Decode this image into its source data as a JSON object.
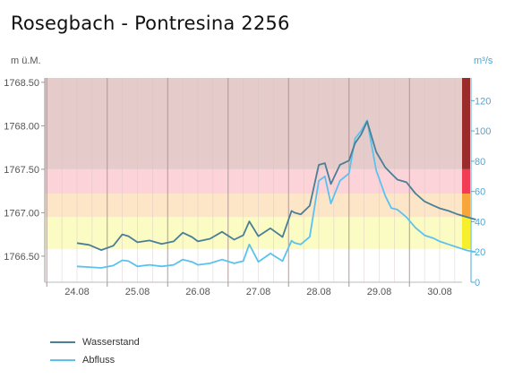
{
  "chart_data": {
    "type": "line",
    "title": "Rosegbach - Pontresina 2256",
    "ylabel_left": "m ü.M.",
    "ylabel_right": "m³/s",
    "ylim_left": [
      1766.2,
      1768.55
    ],
    "ylim_right": [
      0,
      135
    ],
    "yticks_left": [
      "1768.50",
      "1768.00",
      "1767.50",
      "1767.00",
      "1766.50"
    ],
    "yticks_right": [
      "120",
      "100",
      "80",
      "60",
      "40",
      "20",
      "0"
    ],
    "categories": [
      "24.08",
      "25.08",
      "26.08",
      "27.08",
      "28.08",
      "29.08",
      "30.08"
    ],
    "bands": [
      {
        "from": 1766.58,
        "to": 1766.95,
        "color": "#fbfbc4",
        "side": "#f7ee2c"
      },
      {
        "from": 1766.95,
        "to": 1767.22,
        "color": "#fde6c8",
        "side": "#f7a63a"
      },
      {
        "from": 1767.22,
        "to": 1767.5,
        "color": "#fcd3d8",
        "side": "#f23b55"
      },
      {
        "from": 1767.5,
        "to": 1768.55,
        "color": "#e6cbcb",
        "side": "#9b2a2a"
      }
    ],
    "series": [
      {
        "name": "Wasserstand",
        "axis": "left",
        "color": "#4a7f96",
        "x": [
          0,
          0.2,
          0.4,
          0.6,
          0.75,
          0.85,
          1.0,
          1.2,
          1.4,
          1.6,
          1.75,
          1.9,
          2.0,
          2.2,
          2.4,
          2.6,
          2.75,
          2.85,
          3.0,
          3.2,
          3.4,
          3.55,
          3.6,
          3.7,
          3.85,
          4.0,
          4.1,
          4.2,
          4.35,
          4.5,
          4.6,
          4.7,
          4.8,
          4.95,
          5.1,
          5.2,
          5.3,
          5.45,
          5.6,
          5.75,
          5.9,
          6.0,
          6.15,
          6.3,
          6.45,
          6.6
        ],
        "y": [
          1766.65,
          1766.63,
          1766.57,
          1766.62,
          1766.75,
          1766.73,
          1766.66,
          1766.68,
          1766.64,
          1766.67,
          1766.77,
          1766.72,
          1766.67,
          1766.7,
          1766.78,
          1766.69,
          1766.74,
          1766.9,
          1766.73,
          1766.82,
          1766.72,
          1767.02,
          1767.0,
          1766.98,
          1767.08,
          1767.55,
          1767.57,
          1767.33,
          1767.55,
          1767.6,
          1767.8,
          1767.9,
          1768.05,
          1767.7,
          1767.52,
          1767.45,
          1767.38,
          1767.35,
          1767.22,
          1767.13,
          1767.08,
          1767.05,
          1767.02,
          1766.98,
          1766.95,
          1766.92
        ]
      },
      {
        "name": "Abfluss",
        "axis": "right",
        "color": "#5bc2ee",
        "x": [
          0,
          0.2,
          0.4,
          0.6,
          0.75,
          0.85,
          1.0,
          1.2,
          1.4,
          1.6,
          1.75,
          1.9,
          2.0,
          2.2,
          2.4,
          2.6,
          2.75,
          2.85,
          3.0,
          3.2,
          3.4,
          3.55,
          3.6,
          3.7,
          3.85,
          4.0,
          4.1,
          4.2,
          4.35,
          4.5,
          4.6,
          4.7,
          4.8,
          4.95,
          5.1,
          5.2,
          5.3,
          5.45,
          5.6,
          5.75,
          5.9,
          6.0,
          6.15,
          6.3,
          6.45,
          6.6
        ],
        "y": [
          10.5,
          10,
          9.5,
          11,
          14.5,
          14,
          10.5,
          11.5,
          10.5,
          11.5,
          15,
          13.5,
          11.5,
          12.5,
          15,
          12.5,
          14,
          25,
          13.5,
          19,
          14,
          27.5,
          26,
          25,
          30,
          67,
          70,
          52,
          67,
          72,
          95,
          100,
          107,
          74,
          57,
          49,
          48,
          43,
          36,
          31,
          29,
          27,
          25,
          23,
          21,
          20
        ]
      }
    ]
  },
  "legend": {
    "items": [
      {
        "label": "Wasserstand",
        "color": "#4a7f96"
      },
      {
        "label": "Abfluss",
        "color": "#5bc2ee"
      }
    ]
  }
}
